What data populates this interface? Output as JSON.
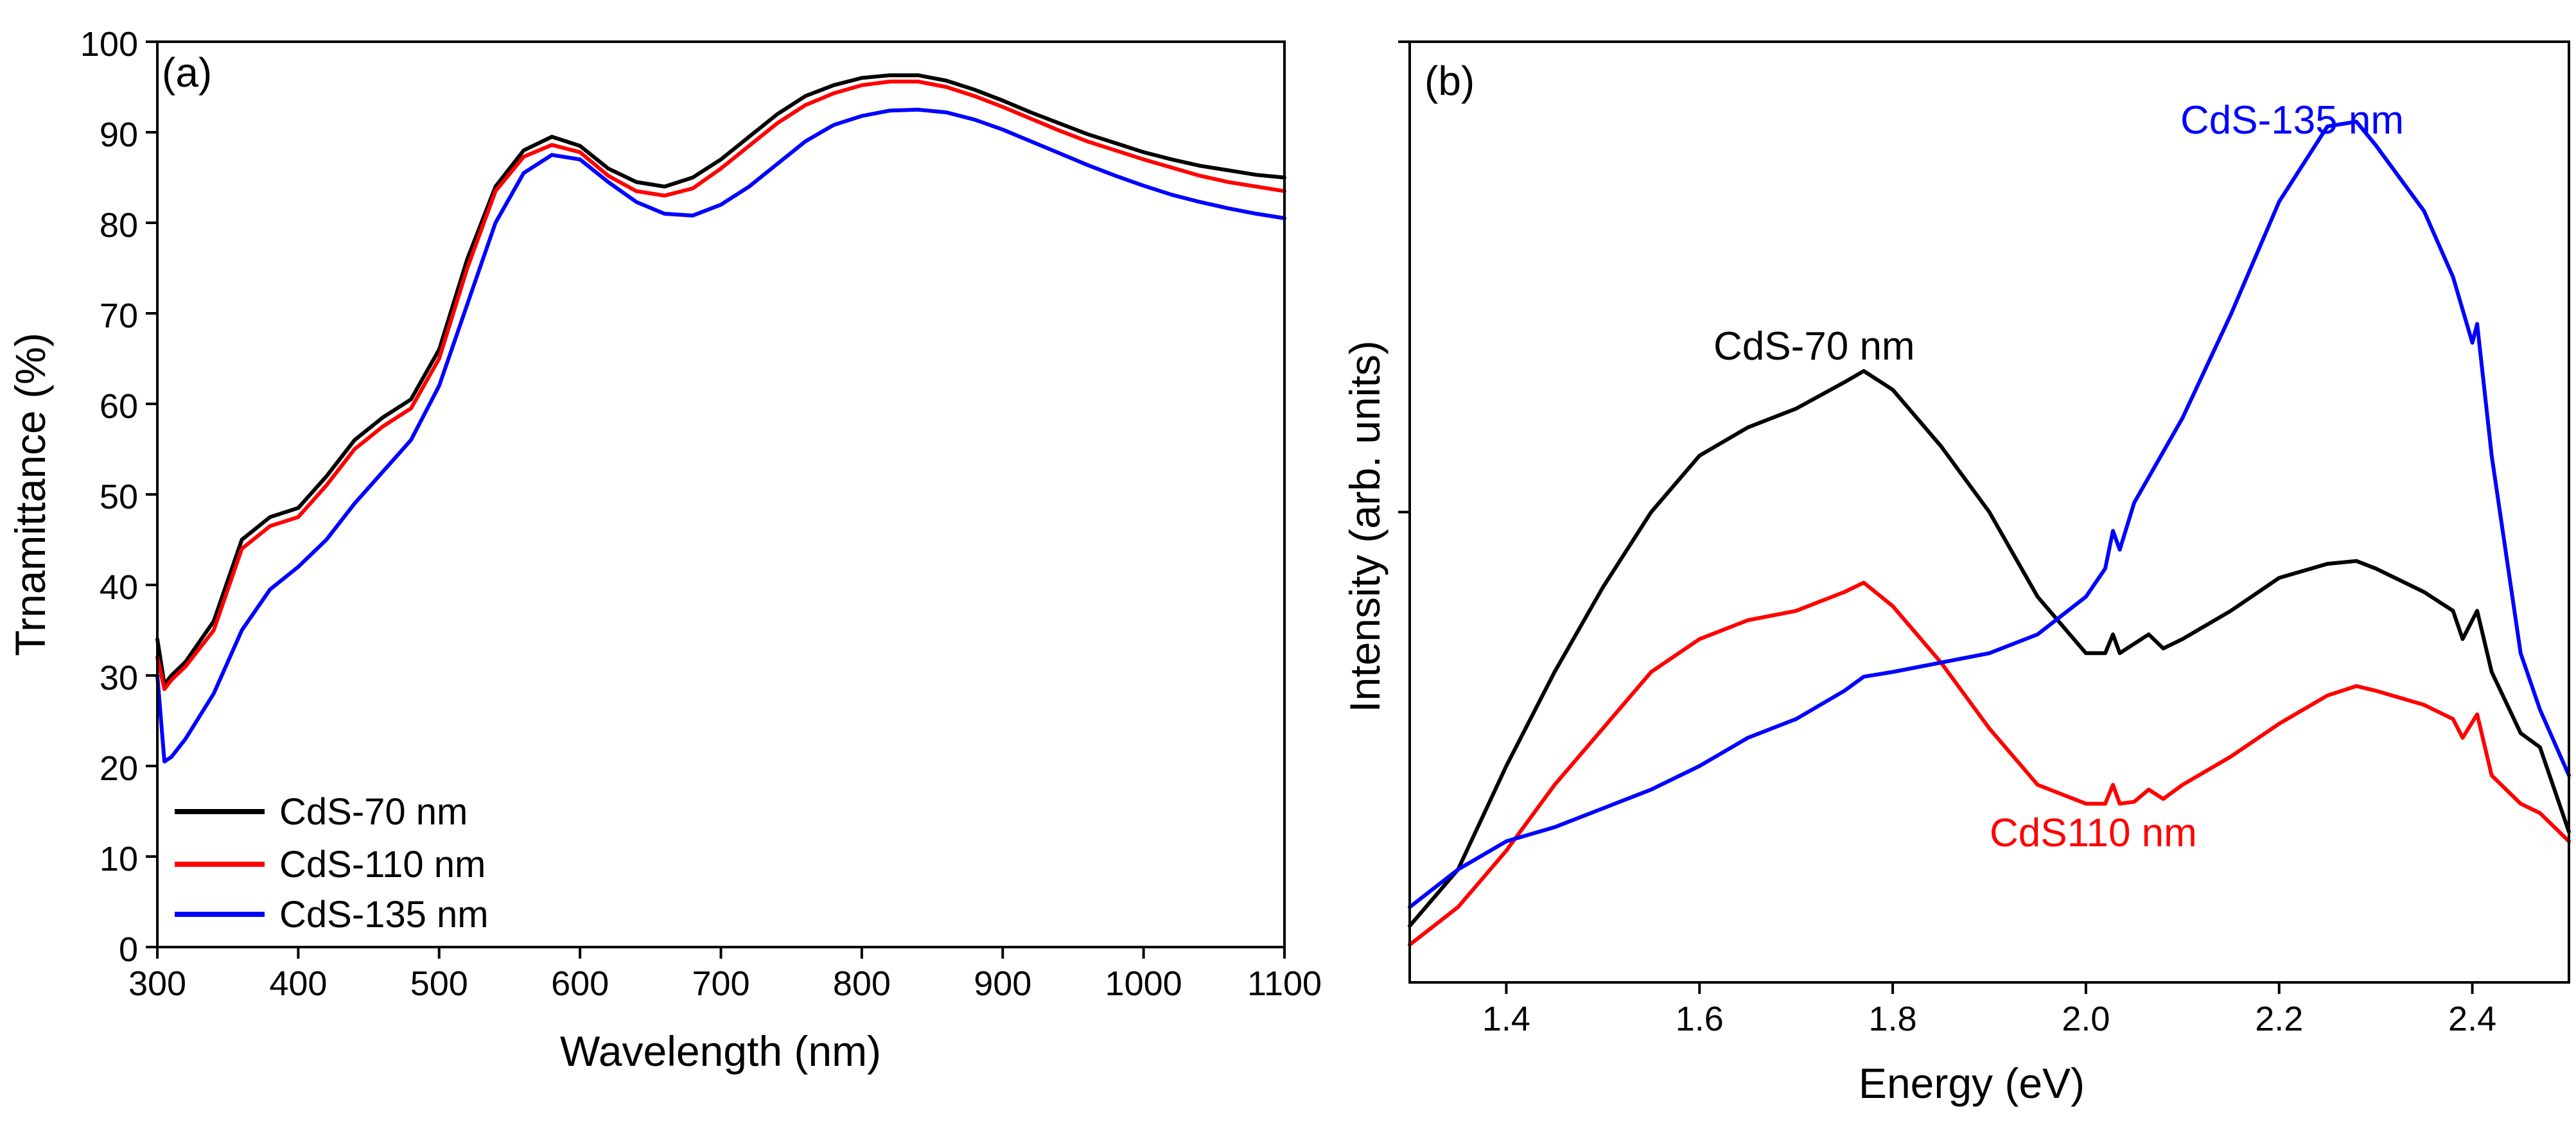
{
  "chart_data": [
    {
      "panel": "(a)",
      "type": "line",
      "xlabel": "Wavelength (nm)",
      "ylabel": "Trnamittance (%)",
      "xlim": [
        300,
        1100
      ],
      "ylim": [
        0,
        100
      ],
      "xticks": [
        300,
        400,
        500,
        600,
        700,
        800,
        900,
        1000,
        1100
      ],
      "yticks": [
        0,
        10,
        20,
        30,
        40,
        50,
        60,
        70,
        80,
        90,
        100
      ],
      "legend_position": "bottom-left",
      "series": [
        {
          "name": "CdS-70 nm",
          "color": "#000000",
          "x": [
            300,
            305,
            310,
            320,
            340,
            360,
            380,
            400,
            420,
            440,
            460,
            480,
            500,
            520,
            540,
            560,
            580,
            600,
            620,
            640,
            660,
            680,
            700,
            720,
            740,
            760,
            780,
            800,
            820,
            840,
            860,
            880,
            900,
            920,
            940,
            960,
            980,
            1000,
            1020,
            1040,
            1060,
            1080,
            1100
          ],
          "y": [
            34,
            29,
            30,
            31.5,
            36,
            45,
            47.5,
            48.5,
            52,
            56,
            58.5,
            60.5,
            66,
            76,
            84,
            88,
            89.5,
            88.5,
            86,
            84.5,
            84,
            85,
            87,
            89.5,
            92,
            94,
            95.2,
            96,
            96.3,
            96.3,
            95.7,
            94.7,
            93.5,
            92.2,
            91,
            89.8,
            88.8,
            87.8,
            87,
            86.3,
            85.8,
            85.3,
            85
          ]
        },
        {
          "name": "CdS-110 nm",
          "color": "#ff0000",
          "x": [
            300,
            305,
            310,
            320,
            340,
            360,
            380,
            400,
            420,
            440,
            460,
            480,
            500,
            520,
            540,
            560,
            580,
            600,
            620,
            640,
            660,
            680,
            700,
            720,
            740,
            760,
            780,
            800,
            820,
            840,
            860,
            880,
            900,
            920,
            940,
            960,
            980,
            1000,
            1020,
            1040,
            1060,
            1080,
            1100
          ],
          "y": [
            32,
            28.5,
            29.5,
            31,
            35,
            44,
            46.5,
            47.5,
            51,
            55,
            57.5,
            59.5,
            65,
            75,
            83.5,
            87.3,
            88.6,
            87.8,
            85.2,
            83.5,
            83,
            83.8,
            86,
            88.5,
            91,
            93,
            94.3,
            95.2,
            95.6,
            95.6,
            95,
            94,
            92.8,
            91.5,
            90.2,
            89,
            88,
            87,
            86.1,
            85.2,
            84.5,
            84,
            83.5
          ]
        },
        {
          "name": "CdS-135 nm",
          "color": "#0000ff",
          "x": [
            300,
            305,
            310,
            320,
            340,
            360,
            380,
            400,
            420,
            440,
            460,
            480,
            500,
            520,
            540,
            560,
            580,
            600,
            620,
            640,
            660,
            680,
            700,
            720,
            740,
            760,
            780,
            800,
            820,
            840,
            860,
            880,
            900,
            920,
            940,
            960,
            980,
            1000,
            1020,
            1040,
            1060,
            1080,
            1100
          ],
          "y": [
            30,
            20.5,
            21,
            23,
            28,
            35,
            39.5,
            42,
            45,
            49,
            52.5,
            56,
            62,
            71,
            80,
            85.5,
            87.5,
            87,
            84.5,
            82.3,
            81,
            80.8,
            82,
            84,
            86.5,
            89,
            90.8,
            91.8,
            92.4,
            92.5,
            92.2,
            91.4,
            90.3,
            89,
            87.7,
            86.4,
            85.2,
            84.1,
            83.1,
            82.3,
            81.6,
            81,
            80.5
          ]
        }
      ]
    },
    {
      "panel": "(b)",
      "type": "line",
      "xlabel": "Energy (eV)",
      "ylabel": "Intensity (arb. units)",
      "xlim": [
        1.3,
        2.5
      ],
      "ylim": [
        0,
        100
      ],
      "xticks": [
        1.4,
        1.6,
        1.8,
        2.0,
        2.2,
        2.4
      ],
      "yticks_unlabeled": [
        50,
        100
      ],
      "series": [
        {
          "name": "CdS-70 nm",
          "label": "CdS-70 nm",
          "color": "#000000",
          "x": [
            1.3,
            1.35,
            1.4,
            1.45,
            1.5,
            1.55,
            1.6,
            1.65,
            1.7,
            1.75,
            1.77,
            1.8,
            1.85,
            1.9,
            1.95,
            2.0,
            2.02,
            2.028,
            2.035,
            2.05,
            2.065,
            2.08,
            2.1,
            2.15,
            2.2,
            2.25,
            2.28,
            2.3,
            2.35,
            2.38,
            2.39,
            2.405,
            2.42,
            2.45,
            2.47,
            2.5
          ],
          "y": [
            6,
            12,
            23,
            33,
            42,
            50,
            56,
            59,
            61,
            63.8,
            65,
            63,
            57,
            50,
            41,
            35,
            35,
            37,
            35,
            36,
            37,
            35.5,
            36.5,
            39.5,
            43,
            44.5,
            44.8,
            44,
            41.5,
            39.5,
            36.5,
            39.5,
            33,
            26.5,
            25,
            16
          ]
        },
        {
          "name": "CdS110 nm",
          "label": "CdS110 nm",
          "color": "#ff0000",
          "x": [
            1.3,
            1.35,
            1.4,
            1.45,
            1.5,
            1.55,
            1.6,
            1.65,
            1.7,
            1.75,
            1.77,
            1.8,
            1.85,
            1.9,
            1.95,
            2.0,
            2.02,
            2.028,
            2.035,
            2.05,
            2.065,
            2.08,
            2.1,
            2.15,
            2.2,
            2.25,
            2.28,
            2.3,
            2.35,
            2.38,
            2.39,
            2.405,
            2.42,
            2.45,
            2.47,
            2.5
          ],
          "y": [
            4,
            8,
            14,
            21,
            27,
            33,
            36.5,
            38.5,
            39.5,
            41.5,
            42.5,
            40,
            34,
            27,
            21,
            19,
            19,
            21,
            19,
            19.2,
            20.5,
            19.5,
            21,
            24,
            27.5,
            30.5,
            31.5,
            31,
            29.5,
            28,
            26,
            28.5,
            22,
            19,
            18,
            15
          ]
        },
        {
          "name": "CdS-135 nm",
          "label": "CdS-135 nm",
          "color": "#0000ff",
          "x": [
            1.3,
            1.35,
            1.4,
            1.45,
            1.5,
            1.55,
            1.6,
            1.65,
            1.7,
            1.75,
            1.77,
            1.8,
            1.85,
            1.9,
            1.95,
            2.0,
            2.02,
            2.028,
            2.035,
            2.05,
            2.1,
            2.15,
            2.2,
            2.25,
            2.28,
            2.3,
            2.35,
            2.38,
            2.4,
            2.405,
            2.42,
            2.45,
            2.47,
            2.5
          ],
          "y": [
            8,
            12,
            15,
            16.5,
            18.5,
            20.5,
            23,
            26,
            28,
            31,
            32.5,
            33,
            34,
            35,
            37,
            41,
            44,
            48,
            46,
            51,
            60,
            71,
            83,
            91,
            91.5,
            89,
            82,
            75,
            68,
            70,
            56,
            35,
            29,
            22
          ]
        }
      ]
    }
  ]
}
